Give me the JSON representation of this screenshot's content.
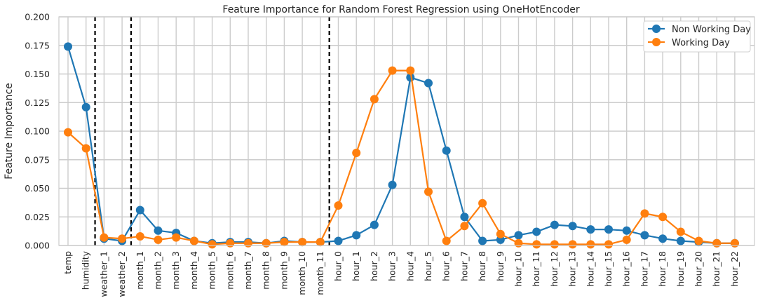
{
  "chart_data": {
    "type": "line",
    "title": "Feature Importance for Random Forest Regression using OneHotEncoder",
    "xlabel": "",
    "ylabel": "Feature Importance",
    "ylim": [
      0,
      0.2
    ],
    "yticks": [
      "0.000",
      "0.025",
      "0.050",
      "0.075",
      "0.100",
      "0.125",
      "0.150",
      "0.175",
      "0.200"
    ],
    "grid": true,
    "legend_position": "top-right",
    "categories": [
      "temp",
      "humidity",
      "weather_1",
      "weather_2",
      "month_1",
      "month_2",
      "month_3",
      "month_4",
      "month_5",
      "month_6",
      "month_7",
      "month_8",
      "month_9",
      "month_10",
      "month_11",
      "hour_0",
      "hour_1",
      "hour_2",
      "hour_3",
      "hour_4",
      "hour_5",
      "hour_6",
      "hour_7",
      "hour_8",
      "hour_9",
      "hour_10",
      "hour_11",
      "hour_12",
      "hour_13",
      "hour_14",
      "hour_15",
      "hour_16",
      "hour_17",
      "hour_18",
      "hour_19",
      "hour_20",
      "hour_21",
      "hour_22"
    ],
    "vlines": [
      1.5,
      3.5,
      14.5
    ],
    "series": [
      {
        "name": "Non Working Day",
        "color": "#1f77b4",
        "values": [
          0.174,
          0.121,
          0.006,
          0.004,
          0.031,
          0.013,
          0.011,
          0.004,
          0.002,
          0.003,
          0.003,
          0.002,
          0.004,
          0.003,
          0.003,
          0.004,
          0.009,
          0.018,
          0.053,
          0.147,
          0.142,
          0.083,
          0.025,
          0.004,
          0.005,
          0.009,
          0.012,
          0.018,
          0.017,
          0.014,
          0.014,
          0.013,
          0.009,
          0.006,
          0.004,
          0.003,
          0.002,
          0.002
        ]
      },
      {
        "name": "Working Day",
        "color": "#ff7f0e",
        "values": [
          0.099,
          0.085,
          0.007,
          0.006,
          0.008,
          0.005,
          0.007,
          0.004,
          0.001,
          0.002,
          0.002,
          0.002,
          0.003,
          0.003,
          0.003,
          0.035,
          0.081,
          0.128,
          0.153,
          0.153,
          0.047,
          0.004,
          0.017,
          0.037,
          0.01,
          0.002,
          0.001,
          0.001,
          0.001,
          0.001,
          0.001,
          0.005,
          0.028,
          0.025,
          0.012,
          0.004,
          0.002,
          0.002
        ]
      }
    ]
  }
}
